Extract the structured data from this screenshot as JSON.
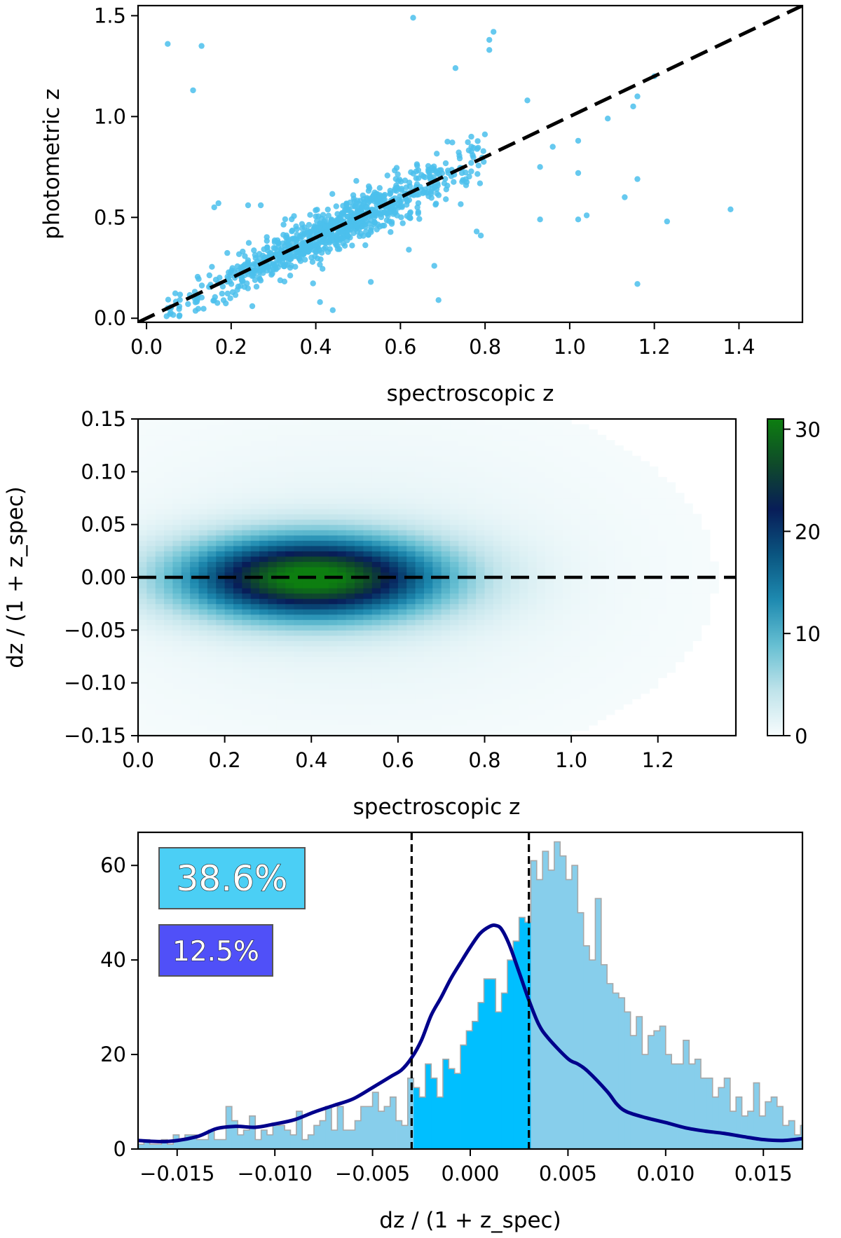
{
  "chart_data": [
    {
      "type": "scatter",
      "xlabel": "spectroscopic z",
      "ylabel": "photometric z",
      "xlim": [
        -0.02,
        1.55
      ],
      "ylim": [
        -0.02,
        1.55
      ],
      "xticks": [
        0.0,
        0.2,
        0.4,
        0.6,
        0.8,
        1.0,
        1.2,
        1.4
      ],
      "xtick_labels": [
        "0.0",
        "0.2",
        "0.4",
        "0.6",
        "0.8",
        "1.0",
        "1.2",
        "1.4"
      ],
      "yticks": [
        0.0,
        0.5,
        1.0,
        1.5
      ],
      "ytick_labels": [
        "0.0",
        "0.5",
        "1.0",
        "1.5"
      ],
      "point_color": "#4bbfec",
      "reference_line": {
        "type": "dashed",
        "x": [
          -0.02,
          1.55
        ],
        "y": [
          -0.02,
          1.55
        ],
        "color": "#000000"
      },
      "outliers": [
        [
          0.05,
          1.36
        ],
        [
          0.13,
          1.35
        ],
        [
          0.11,
          1.13
        ],
        [
          0.63,
          1.49
        ],
        [
          0.82,
          1.42
        ],
        [
          0.81,
          1.38
        ],
        [
          0.81,
          1.33
        ],
        [
          0.73,
          1.24
        ],
        [
          0.9,
          1.08
        ],
        [
          1.2,
          1.2
        ],
        [
          1.16,
          1.1
        ],
        [
          1.15,
          1.05
        ],
        [
          1.09,
          0.99
        ],
        [
          1.02,
          0.88
        ],
        [
          0.96,
          0.85
        ],
        [
          0.93,
          0.75
        ],
        [
          1.02,
          0.72
        ],
        [
          1.13,
          0.6
        ],
        [
          1.16,
          0.69
        ],
        [
          1.04,
          0.51
        ],
        [
          1.02,
          0.49
        ],
        [
          0.93,
          0.49
        ],
        [
          1.23,
          0.48
        ],
        [
          1.38,
          0.54
        ],
        [
          1.16,
          0.17
        ],
        [
          0.69,
          0.09
        ],
        [
          0.62,
          0.34
        ],
        [
          0.68,
          0.26
        ],
        [
          0.53,
          0.18
        ],
        [
          0.44,
          0.04
        ],
        [
          0.41,
          0.08
        ],
        [
          0.25,
          0.06
        ],
        [
          0.17,
          0.57
        ],
        [
          0.16,
          0.55
        ],
        [
          0.24,
          0.56
        ],
        [
          0.27,
          0.56
        ],
        [
          0.78,
          0.43
        ],
        [
          0.79,
          0.41
        ],
        [
          0.05,
          0.05
        ]
      ],
      "bulk_description": "about 900 galaxies scattered tightly around the one-to-one line for 0.04 < z < 0.8"
    },
    {
      "type": "heatmap",
      "xlabel": "spectroscopic z",
      "ylabel": "dz / (1 + z_spec)",
      "xlim": [
        0.0,
        1.38
      ],
      "ylim": [
        -0.15,
        0.15
      ],
      "xticks": [
        0.0,
        0.2,
        0.4,
        0.6,
        0.8,
        1.0,
        1.2
      ],
      "xtick_labels": [
        "0.0",
        "0.2",
        "0.4",
        "0.6",
        "0.8",
        "1.0",
        "1.2"
      ],
      "yticks": [
        0.15,
        0.1,
        0.05,
        0.0,
        -0.05,
        -0.1,
        -0.15
      ],
      "ytick_labels": [
        "0.15",
        "0.10",
        "0.05",
        "0.00",
        "−0.05",
        "−0.10",
        "−0.15"
      ],
      "colorbar": {
        "ticks": [
          0,
          10,
          20,
          30
        ],
        "tick_labels": [
          "0",
          "10",
          "20",
          "30"
        ],
        "range": [
          0,
          31
        ],
        "colormap": [
          "#f7fcfd",
          "#bfe3ea",
          "#66bfd2",
          "#1e8ab0",
          "#0a5580",
          "#081d58",
          "#0f4a2a",
          "#0d7e10"
        ]
      },
      "density_peak": {
        "x": 0.4,
        "y": 0.0,
        "value": 31
      },
      "reference_line": {
        "type": "dashed",
        "y": 0.0,
        "color": "#000000"
      }
    },
    {
      "type": "bar",
      "xlabel": "dz / (1 + z_spec)",
      "ylabel": "",
      "xlim": [
        -0.017,
        0.017
      ],
      "ylim": [
        0,
        67
      ],
      "xticks": [
        -0.015,
        -0.01,
        -0.005,
        0.0,
        0.005,
        0.01,
        0.015
      ],
      "xtick_labels": [
        "−0.015",
        "−0.010",
        "−0.005",
        "0.000",
        "0.005",
        "0.010",
        "0.015"
      ],
      "yticks": [
        0,
        20,
        40,
        60
      ],
      "ytick_labels": [
        "0",
        "20",
        "40",
        "60"
      ],
      "bin_start": -0.017,
      "bin_width": 0.0003,
      "values": [
        1,
        2,
        1,
        1,
        2,
        1,
        3,
        2,
        3,
        3,
        2,
        2,
        4,
        2,
        2,
        9,
        6,
        3,
        4,
        7,
        2,
        4,
        3,
        5,
        5,
        4,
        3,
        8,
        2,
        3,
        5,
        6,
        9,
        4,
        9,
        4,
        4,
        6,
        9,
        9,
        12,
        8,
        9,
        11,
        6,
        5,
        15,
        13,
        11,
        18,
        15,
        11,
        19,
        17,
        16,
        22,
        25,
        27,
        31,
        36,
        36,
        29,
        33,
        40,
        44,
        49,
        48,
        61,
        57,
        63,
        59,
        65,
        62,
        57,
        60,
        50,
        43,
        40,
        53,
        39,
        35,
        33,
        32,
        29,
        24,
        28,
        20,
        24,
        25,
        26,
        20,
        18,
        18,
        23,
        18,
        19,
        15,
        15,
        11,
        13,
        15,
        8,
        11,
        7,
        8,
        14,
        7,
        10,
        11,
        9,
        5,
        6,
        3,
        5,
        7,
        6,
        3,
        5,
        4,
        3,
        2,
        4,
        3,
        2,
        2,
        3,
        3,
        2,
        2,
        1,
        3,
        2,
        1,
        1,
        1,
        1
      ],
      "inner_band": [
        -0.003,
        0.003
      ],
      "inner_color": "#00bfff",
      "outer_color": "#87ceeb",
      "outline_color": "#a8a8a8",
      "kde_color": "#00008b",
      "kde": [
        [
          -0.017,
          1.8
        ],
        [
          -0.0155,
          1.6
        ],
        [
          -0.014,
          2.6
        ],
        [
          -0.013,
          4.3
        ],
        [
          -0.012,
          4.8
        ],
        [
          -0.011,
          4.6
        ],
        [
          -0.01,
          5.3
        ],
        [
          -0.009,
          6.2
        ],
        [
          -0.008,
          7.8
        ],
        [
          -0.007,
          9.2
        ],
        [
          -0.006,
          10.6
        ],
        [
          -0.005,
          13.0
        ],
        [
          -0.004,
          15.5
        ],
        [
          -0.0035,
          16.8
        ],
        [
          -0.003,
          19.3
        ],
        [
          -0.0025,
          23.0
        ],
        [
          -0.002,
          28.3
        ],
        [
          -0.0015,
          32.0
        ],
        [
          -0.001,
          36.0
        ],
        [
          -0.0005,
          39.4
        ],
        [
          0.0,
          42.7
        ],
        [
          0.0005,
          45.6
        ],
        [
          0.001,
          47.1
        ],
        [
          0.0013,
          47.3
        ],
        [
          0.0016,
          46.5
        ],
        [
          0.002,
          43.2
        ],
        [
          0.0025,
          37.4
        ],
        [
          0.003,
          31.5
        ],
        [
          0.0035,
          26.4
        ],
        [
          0.004,
          23.4
        ],
        [
          0.005,
          19.1
        ],
        [
          0.0055,
          18.0
        ],
        [
          0.006,
          16.5
        ],
        [
          0.007,
          12.2
        ],
        [
          0.0075,
          9.5
        ],
        [
          0.008,
          7.9
        ],
        [
          0.009,
          6.6
        ],
        [
          0.01,
          5.6
        ],
        [
          0.011,
          4.5
        ],
        [
          0.012,
          3.8
        ],
        [
          0.013,
          3.3
        ],
        [
          0.014,
          2.6
        ],
        [
          0.015,
          2.0
        ],
        [
          0.016,
          1.8
        ],
        [
          0.017,
          2.2
        ]
      ],
      "vlines": [
        -0.003,
        0.003
      ],
      "annotations": [
        {
          "text": "38.6%",
          "color": "#4bcff5"
        },
        {
          "text": "12.5%",
          "color": "#5050f8"
        }
      ]
    }
  ]
}
